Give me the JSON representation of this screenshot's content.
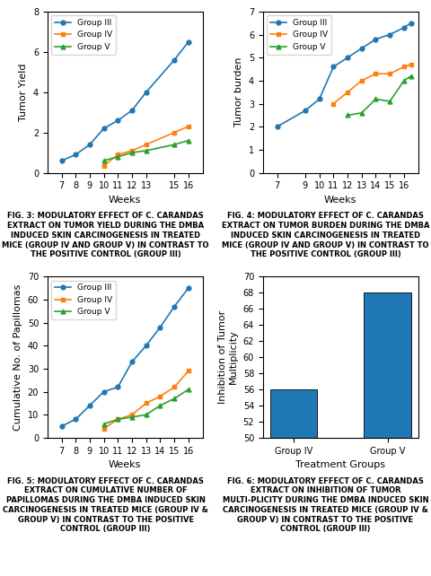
{
  "chart_data": [
    {
      "type": "line",
      "title": "FIG. 3: MODULATORY EFFECT OF C. CARANDAS EXTRACT ON TUMOR YIELD DURING THE DMBA INDUCED SKIN CARCINOGENESIS IN TREATED MICE (GROUP IV AND GROUP V) IN CONTRAST TO THE POSITIVE CONTROL (GROUP III)",
      "xlabel": "Weeks",
      "ylabel": "Tumor Yield",
      "x": [
        7,
        8,
        9,
        10,
        11,
        12,
        13,
        15,
        16
      ],
      "series": [
        {
          "name": "Group III",
          "marker": "circle",
          "values": [
            0.6,
            0.9,
            1.4,
            2.2,
            2.6,
            3.1,
            4.0,
            5.6,
            6.5
          ]
        },
        {
          "name": "Group IV",
          "marker": "square",
          "values": [
            null,
            null,
            null,
            0.35,
            0.9,
            1.1,
            1.4,
            2.0,
            2.3
          ]
        },
        {
          "name": "Group V",
          "marker": "triangle",
          "values": [
            null,
            null,
            null,
            0.6,
            0.8,
            1.0,
            1.1,
            1.4,
            1.6
          ]
        }
      ],
      "xlim": [
        6,
        17
      ],
      "xticks": [
        7,
        8,
        9,
        10,
        11,
        12,
        13,
        15,
        16
      ],
      "ylim": [
        0,
        8
      ],
      "yticks": [
        0,
        2,
        4,
        6,
        8
      ],
      "legend": "upper left",
      "grid": false
    },
    {
      "type": "line",
      "title": "FIG. 4: MODULATORY EFFECT OF C. CARANDAS EXTRACT ON TUMOR BURDEN DURING THE DMBA INDUCED SKIN CARCINOGENESIS IN TREATED MICE (GROUP IV AND GROUP V) IN CONTRAST TO THE POSITIVE CONTROL (GROUP III)",
      "xlabel": "Weeks",
      "ylabel": "Tumor burden",
      "x": [
        7,
        9,
        10,
        11,
        12,
        13,
        14,
        15,
        16,
        16.5
      ],
      "series": [
        {
          "name": "Group III",
          "marker": "circle",
          "values": [
            2.0,
            2.7,
            3.2,
            4.6,
            5.0,
            5.4,
            5.8,
            6.0,
            6.3,
            6.5
          ]
        },
        {
          "name": "Group IV",
          "marker": "square",
          "values": [
            null,
            null,
            null,
            3.0,
            3.5,
            4.0,
            4.3,
            4.3,
            4.6,
            4.7
          ]
        },
        {
          "name": "Group V",
          "marker": "triangle",
          "values": [
            null,
            null,
            null,
            null,
            2.5,
            2.6,
            3.2,
            3.1,
            4.0,
            4.2
          ]
        }
      ],
      "xlim": [
        6,
        17
      ],
      "xticks": [
        7,
        9,
        10,
        11,
        12,
        13,
        14,
        15,
        16
      ],
      "ylim": [
        0,
        7
      ],
      "yticks": [
        0,
        1,
        2,
        3,
        4,
        5,
        6,
        7
      ],
      "legend": "upper left",
      "grid": false
    },
    {
      "type": "line",
      "title": "FIG. 5: MODULATORY EFFECT OF C. CARANDAS EXTRACT ON CUMULATIVE NUMBER OF PAPILLOMAS DURING THE DMBA INDUCED SKIN CARCINOGENESIS IN TREATED MICE (GROUP IV & GROUP V) IN CONTRAST TO THE POSITIVE CONTROL (GROUP III)",
      "xlabel": "Weeks",
      "ylabel": "Cumulative No. of Papillomas",
      "x": [
        7,
        8,
        9,
        10,
        11,
        12,
        13,
        14,
        15,
        16
      ],
      "series": [
        {
          "name": "Group III",
          "marker": "circle",
          "values": [
            5,
            8,
            14,
            20,
            22,
            33,
            40,
            48,
            57,
            65
          ]
        },
        {
          "name": "Group IV",
          "marker": "square",
          "values": [
            null,
            null,
            null,
            4,
            8,
            10,
            15,
            18,
            22,
            29
          ]
        },
        {
          "name": "Group V",
          "marker": "triangle",
          "values": [
            null,
            null,
            null,
            6,
            8,
            9,
            10,
            14,
            17,
            21
          ]
        }
      ],
      "xlim": [
        6,
        17
      ],
      "xticks": [
        7,
        8,
        9,
        10,
        11,
        12,
        13,
        14,
        15,
        16
      ],
      "ylim": [
        0,
        70
      ],
      "yticks": [
        0,
        10,
        20,
        30,
        40,
        50,
        60,
        70
      ],
      "legend": "upper left",
      "grid": false
    },
    {
      "type": "bar",
      "title": "FIG. 6: MODULATORY EFFECT OF C. CARANDAS EXTRACT ON INHIBITION OF TUMOR MULTI-PLICITY DURING THE DMBA INDUCED SKIN CARCINOGENESIS IN TREATED MICE (GROUP IV & GROUP V) IN CONTRAST TO THE POSITIVE CONTROL (GROUP III)",
      "xlabel": "Treatment Groups",
      "ylabel": "Inhibition of Tumor\nMultiplicity",
      "categories": [
        "Group IV",
        "Group V"
      ],
      "values": [
        56,
        68
      ],
      "ylim": [
        50,
        70
      ],
      "yticks": [
        50,
        52,
        54,
        56,
        58,
        60,
        62,
        64,
        66,
        68,
        70
      ],
      "grid": false
    }
  ]
}
